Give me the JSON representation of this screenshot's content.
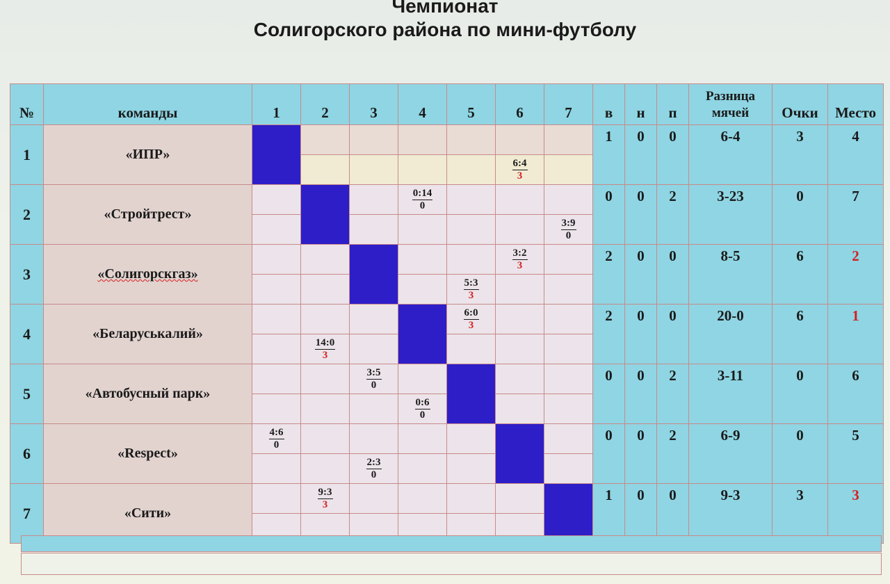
{
  "title": {
    "line1": "Чемпионат",
    "line2": "Солигорского района по мини-футболу"
  },
  "headers": {
    "num": "№",
    "teams": "команды",
    "cols": [
      "1",
      "2",
      "3",
      "4",
      "5",
      "6",
      "7"
    ],
    "w": "в",
    "d": "н",
    "l": "п",
    "diff_line1": "Разница",
    "diff_line2": "мячей",
    "points": "Очки",
    "place": "Место"
  },
  "teams": [
    {
      "num": "1",
      "name": "«ИПР»",
      "w": "1",
      "d": "0",
      "l": "0",
      "diff": "6-4",
      "points": "3",
      "place": "4",
      "place_red": false
    },
    {
      "num": "2",
      "name": "«Стройтрест»",
      "w": "0",
      "d": "0",
      "l": "2",
      "diff": "3-23",
      "points": "0",
      "place": "7",
      "place_red": false
    },
    {
      "num": "3",
      "name": "«Солигорскгаз»",
      "w": "2",
      "d": "0",
      "l": "0",
      "diff": "8-5",
      "points": "6",
      "place": "2",
      "place_red": true
    },
    {
      "num": "4",
      "name": "«Беларуськалий»",
      "w": "2",
      "d": "0",
      "l": "0",
      "diff": "20-0",
      "points": "6",
      "place": "1",
      "place_red": true
    },
    {
      "num": "5",
      "name": "«Автобусный парк»",
      "w": "0",
      "d": "0",
      "l": "2",
      "diff": "3-11",
      "points": "0",
      "place": "6",
      "place_red": false
    },
    {
      "num": "6",
      "name": "«Respect»",
      "w": "0",
      "d": "0",
      "l": "2",
      "diff": "6-9",
      "points": "0",
      "place": "5",
      "place_red": false
    },
    {
      "num": "7",
      "name": "«Сити»",
      "w": "1",
      "d": "0",
      "l": "0",
      "diff": "9-3",
      "points": "3",
      "place": "3",
      "place_red": true
    }
  ],
  "results": [
    {
      "row": 1,
      "col": 6,
      "half": "lower",
      "score": "6:4",
      "pts": "3",
      "pts_red": true
    },
    {
      "row": 2,
      "col": 4,
      "half": "upper",
      "score": "0:14",
      "pts": "0",
      "pts_red": false
    },
    {
      "row": 2,
      "col": 7,
      "half": "lower",
      "score": "3:9",
      "pts": "0",
      "pts_red": false
    },
    {
      "row": 3,
      "col": 6,
      "half": "upper",
      "score": "3:2",
      "pts": "3",
      "pts_red": true
    },
    {
      "row": 3,
      "col": 5,
      "half": "lower",
      "score": "5:3",
      "pts": "3",
      "pts_red": true
    },
    {
      "row": 4,
      "col": 5,
      "half": "upper",
      "score": "6:0",
      "pts": "3",
      "pts_red": true
    },
    {
      "row": 4,
      "col": 2,
      "half": "lower",
      "score": "14:0",
      "pts": "3",
      "pts_red": true
    },
    {
      "row": 5,
      "col": 3,
      "half": "upper",
      "score": "3:5",
      "pts": "0",
      "pts_red": false
    },
    {
      "row": 5,
      "col": 4,
      "half": "lower",
      "score": "0:6",
      "pts": "0",
      "pts_red": false
    },
    {
      "row": 6,
      "col": 1,
      "half": "upper",
      "score": "4:6",
      "pts": "0",
      "pts_red": false
    },
    {
      "row": 6,
      "col": 3,
      "half": "lower",
      "score": "2:3",
      "pts": "0",
      "pts_red": false
    },
    {
      "row": 7,
      "col": 2,
      "half": "upper",
      "score": "9:3",
      "pts": "3",
      "pts_red": true
    }
  ],
  "colors": {
    "header_bg": "#8fd5e3",
    "diagonal": "#2e1ec8",
    "highlight_red": "#d42020"
  }
}
